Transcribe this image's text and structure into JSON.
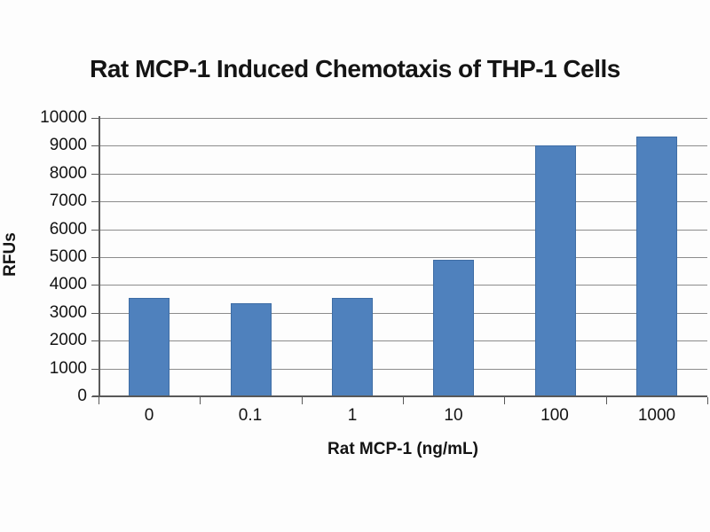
{
  "chart_data": {
    "type": "bar",
    "title": "Rat MCP-1 Induced Chemotaxis of THP-1 Cells",
    "xlabel": "Rat MCP-1 (ng/mL)",
    "ylabel": "RFUs",
    "categories": [
      "0",
      "0.1",
      "1",
      "10",
      "100",
      "1000"
    ],
    "values": [
      3550,
      3350,
      3550,
      4900,
      9000,
      9330
    ],
    "ylim": [
      0,
      10000
    ],
    "ytick_step": 1000,
    "ytick_labels": [
      "0",
      "1000",
      "2000",
      "3000",
      "4000",
      "5000",
      "6000",
      "7000",
      "8000",
      "9000",
      "10000"
    ],
    "grid": true,
    "legend_position": "none",
    "colors": {
      "bar_fill": "#4f81bd",
      "bar_border": "#3e6da5",
      "gridline": "#8c8c8c",
      "axis": "#595959",
      "text": "#141414",
      "background": "#fdfdfd"
    }
  }
}
